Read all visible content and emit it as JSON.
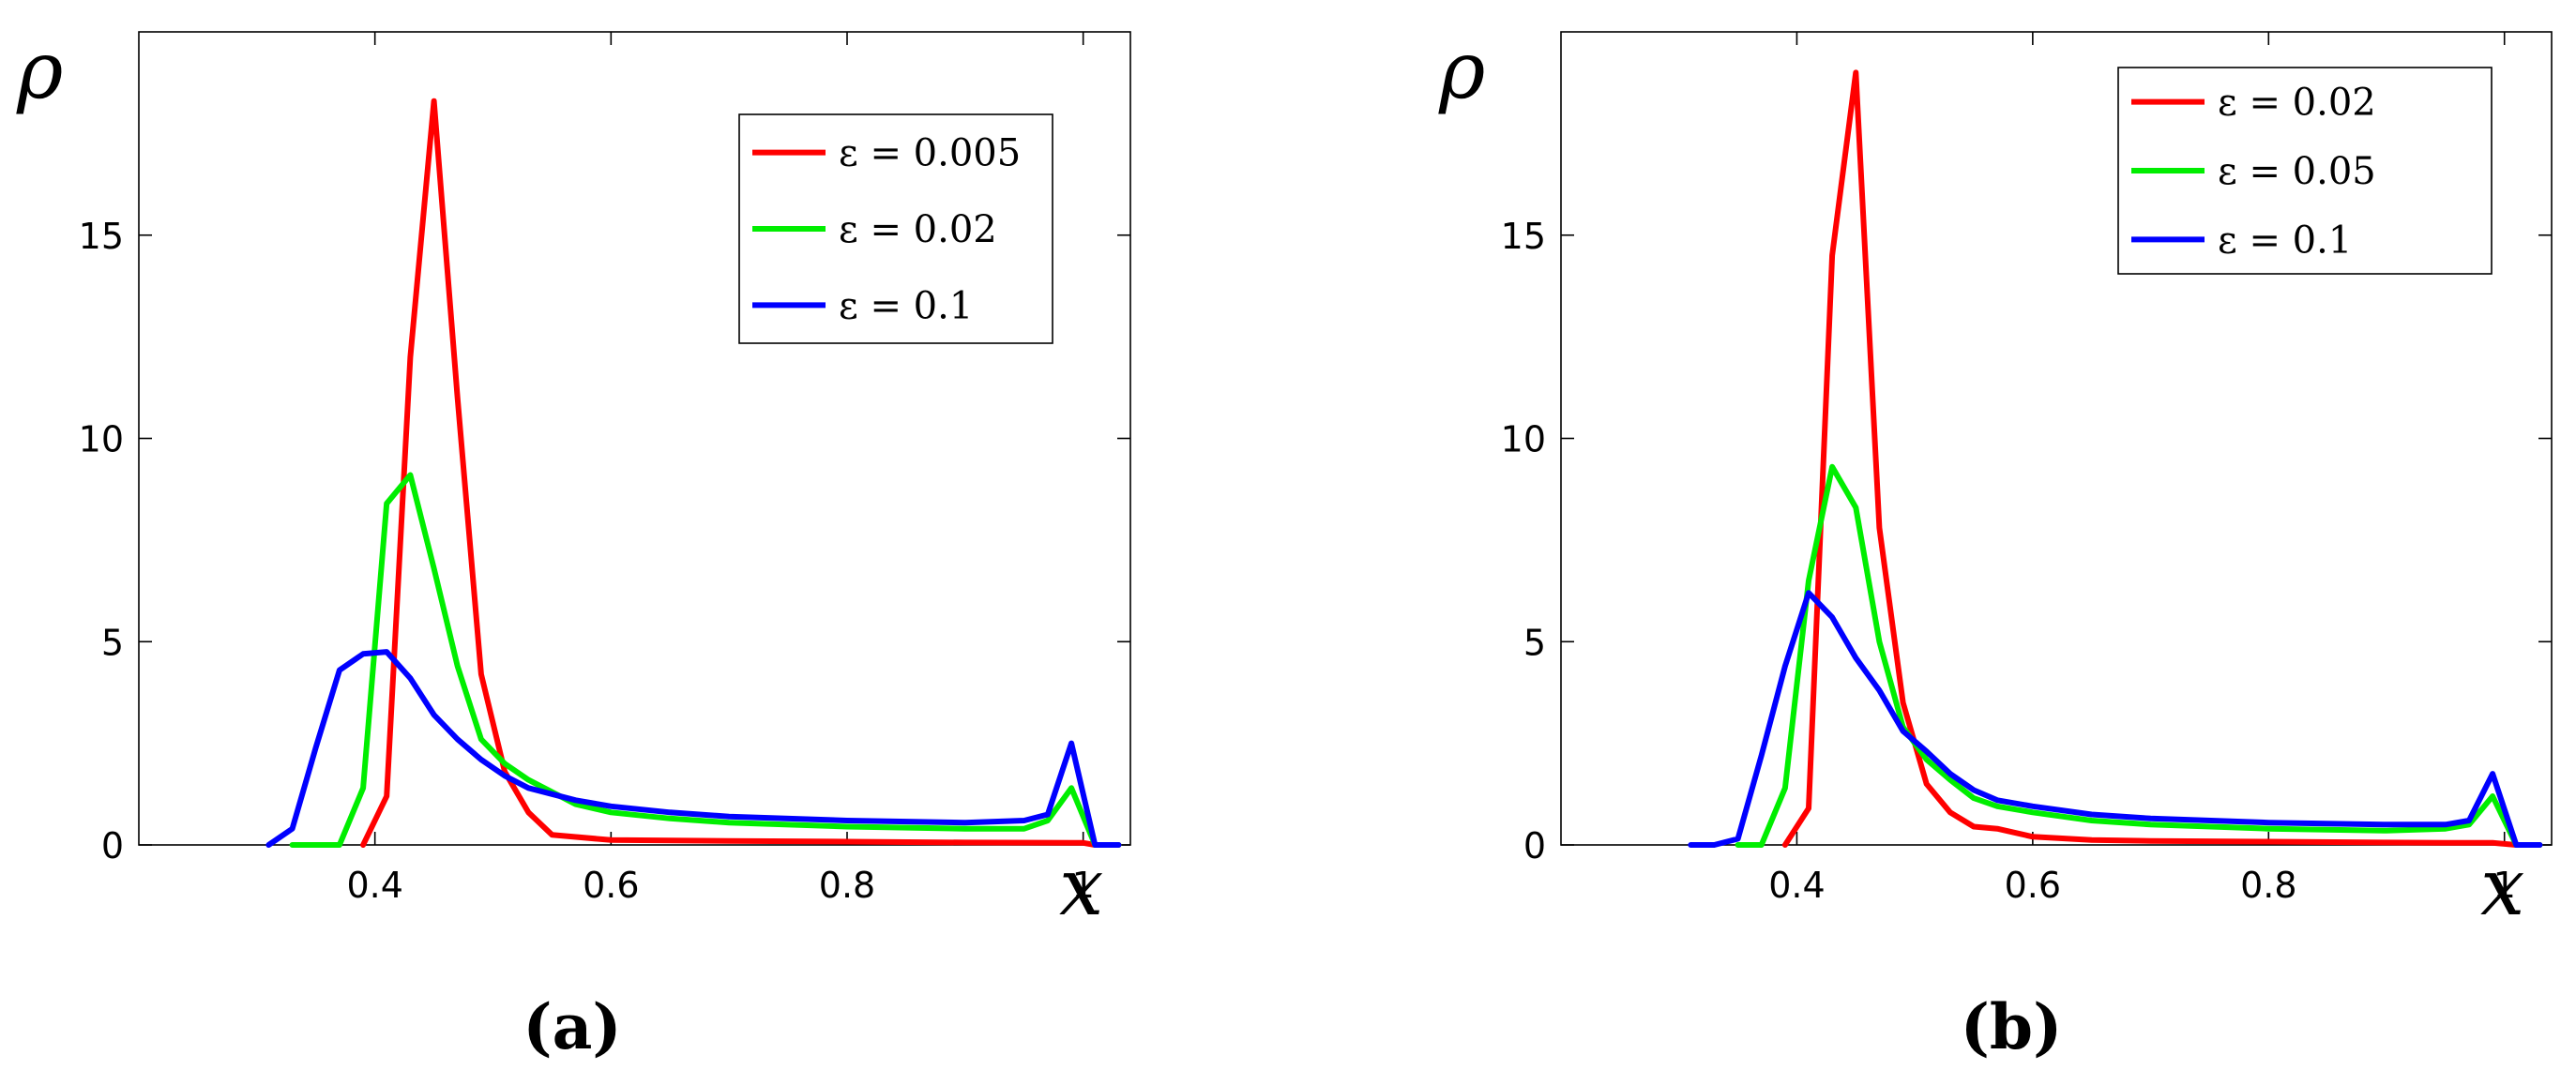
{
  "chart_data": [
    {
      "type": "line",
      "caption": "(a)",
      "xlabel": "x",
      "ylabel": "ρ",
      "xlim": [
        0.2,
        1.04
      ],
      "ylim": [
        0,
        20
      ],
      "xticks": [
        0.4,
        0.6,
        0.8,
        1
      ],
      "xtick_labels": [
        "0.4",
        "0.6",
        "0.8",
        "1"
      ],
      "yticks": [
        0,
        5,
        10,
        15
      ],
      "ytick_labels": [
        "0",
        "5",
        "10",
        "15"
      ],
      "grid": false,
      "legend_position": "top-right",
      "series": [
        {
          "name": "ε = 0.005",
          "color": "#ff0000",
          "x": [
            0.39,
            0.41,
            0.43,
            0.45,
            0.47,
            0.49,
            0.51,
            0.53,
            0.55,
            0.6,
            0.7,
            0.8,
            0.9,
            1.0,
            1.01,
            1.03
          ],
          "y": [
            0,
            1.2,
            12,
            18.3,
            11,
            4.2,
            1.8,
            0.8,
            0.25,
            0.12,
            0.1,
            0.08,
            0.06,
            0.05,
            0,
            0
          ]
        },
        {
          "name": "ε = 0.02",
          "color": "#00ee00",
          "x": [
            0.33,
            0.35,
            0.37,
            0.39,
            0.41,
            0.43,
            0.45,
            0.47,
            0.49,
            0.51,
            0.53,
            0.55,
            0.57,
            0.6,
            0.65,
            0.7,
            0.8,
            0.9,
            0.95,
            0.97,
            0.99,
            1.01,
            1.03
          ],
          "y": [
            0,
            0,
            0,
            1.4,
            8.4,
            9.1,
            6.8,
            4.4,
            2.6,
            2.0,
            1.6,
            1.3,
            1.0,
            0.8,
            0.65,
            0.55,
            0.45,
            0.4,
            0.4,
            0.6,
            1.4,
            0,
            0
          ]
        },
        {
          "name": "ε = 0.1",
          "color": "#0000ff",
          "x": [
            0.31,
            0.33,
            0.35,
            0.37,
            0.39,
            0.41,
            0.43,
            0.45,
            0.47,
            0.49,
            0.51,
            0.53,
            0.55,
            0.57,
            0.6,
            0.65,
            0.7,
            0.8,
            0.9,
            0.95,
            0.97,
            0.99,
            1.01,
            1.03
          ],
          "y": [
            0,
            0.4,
            2.4,
            4.3,
            4.7,
            4.75,
            4.1,
            3.2,
            2.6,
            2.1,
            1.7,
            1.4,
            1.25,
            1.1,
            0.95,
            0.8,
            0.7,
            0.6,
            0.55,
            0.6,
            0.75,
            2.5,
            0,
            0
          ]
        }
      ]
    },
    {
      "type": "line",
      "caption": "(b)",
      "xlabel": "x",
      "ylabel": "ρ",
      "xlim": [
        0.2,
        1.04
      ],
      "ylim": [
        0,
        20
      ],
      "xticks": [
        0.4,
        0.6,
        0.8,
        1
      ],
      "xtick_labels": [
        "0.4",
        "0.6",
        "0.8",
        "1"
      ],
      "yticks": [
        0,
        5,
        10,
        15
      ],
      "ytick_labels": [
        "0",
        "5",
        "10",
        "15"
      ],
      "grid": false,
      "legend_position": "top-right",
      "series": [
        {
          "name": "ε = 0.02",
          "color": "#ff0000",
          "x": [
            0.39,
            0.41,
            0.43,
            0.45,
            0.47,
            0.49,
            0.51,
            0.53,
            0.55,
            0.57,
            0.6,
            0.65,
            0.7,
            0.8,
            0.9,
            0.95,
            0.97,
            0.99,
            1.01,
            1.03
          ],
          "y": [
            0,
            0.9,
            14.5,
            19,
            7.8,
            3.5,
            1.5,
            0.8,
            0.45,
            0.4,
            0.2,
            0.12,
            0.1,
            0.08,
            0.06,
            0.05,
            0.05,
            0.05,
            0,
            0
          ]
        },
        {
          "name": "ε = 0.05",
          "color": "#00ee00",
          "x": [
            0.35,
            0.37,
            0.39,
            0.41,
            0.43,
            0.45,
            0.47,
            0.49,
            0.51,
            0.53,
            0.55,
            0.57,
            0.6,
            0.65,
            0.7,
            0.8,
            0.9,
            0.95,
            0.97,
            0.99,
            1.01,
            1.03
          ],
          "y": [
            0,
            0,
            1.4,
            6.5,
            9.3,
            8.3,
            5.0,
            2.9,
            2.1,
            1.6,
            1.15,
            0.95,
            0.8,
            0.6,
            0.5,
            0.4,
            0.35,
            0.4,
            0.5,
            1.2,
            0,
            0
          ]
        },
        {
          "name": "ε = 0.1",
          "color": "#0000ff",
          "x": [
            0.31,
            0.33,
            0.35,
            0.37,
            0.39,
            0.41,
            0.43,
            0.45,
            0.47,
            0.49,
            0.51,
            0.53,
            0.55,
            0.57,
            0.6,
            0.65,
            0.7,
            0.8,
            0.9,
            0.95,
            0.97,
            0.99,
            1.01,
            1.03
          ],
          "y": [
            0,
            0,
            0.15,
            2.2,
            4.4,
            6.2,
            5.6,
            4.6,
            3.8,
            2.8,
            2.3,
            1.75,
            1.35,
            1.1,
            0.95,
            0.75,
            0.65,
            0.55,
            0.5,
            0.5,
            0.6,
            1.75,
            0,
            0
          ]
        }
      ]
    }
  ]
}
